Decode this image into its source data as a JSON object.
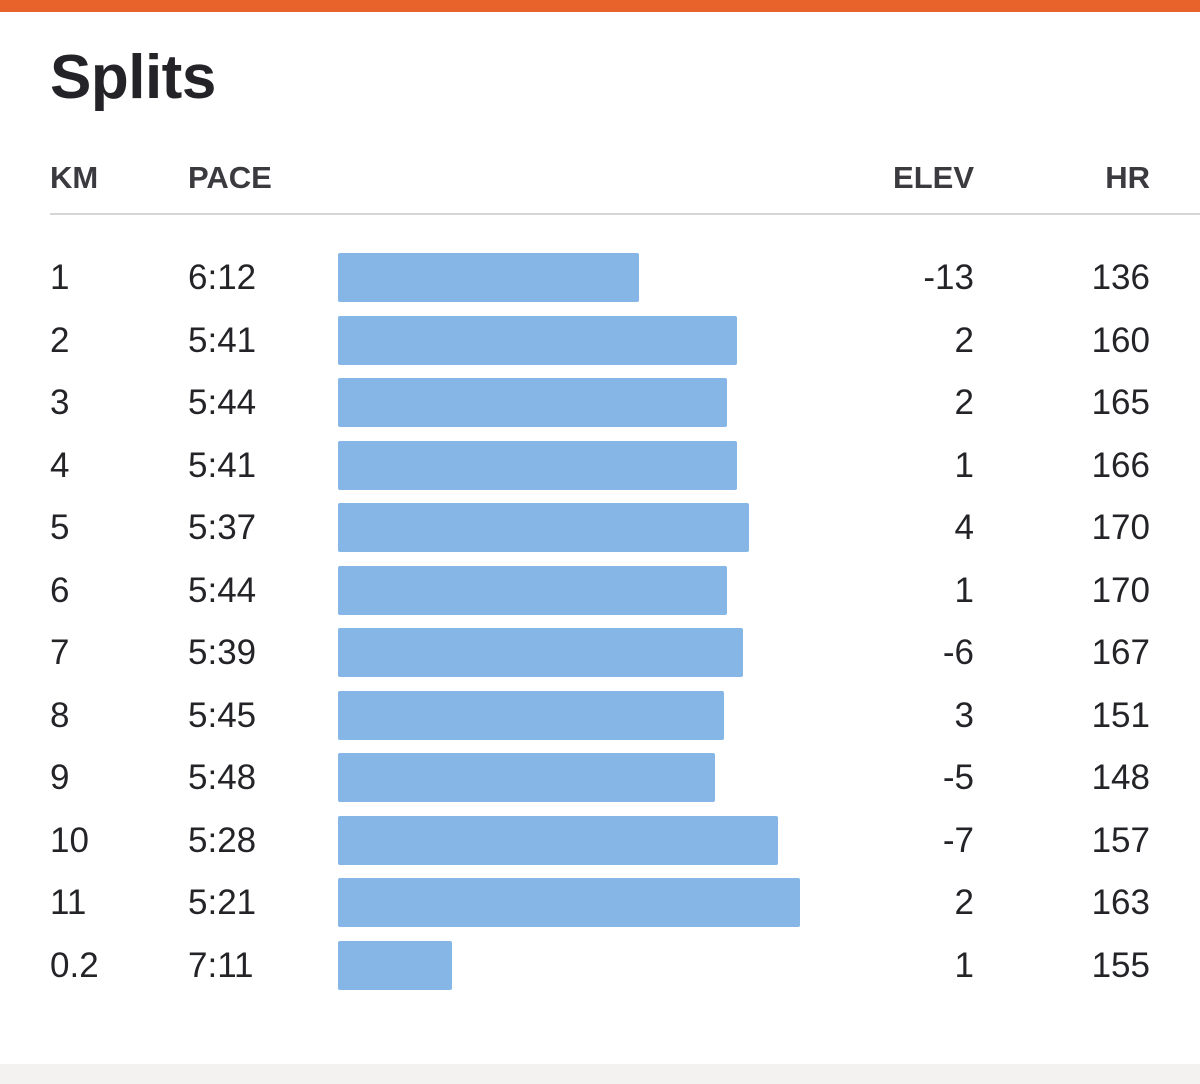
{
  "accent_color": "#e8632b",
  "bar_color": "#85b6e6",
  "title": "Splits",
  "columns": {
    "km": "KM",
    "pace": "PACE",
    "elev": "ELEV",
    "hr": "HR"
  },
  "splits": [
    {
      "km": "1",
      "pace": "6:12",
      "elev": "-13",
      "hr": "136",
      "pace_seconds": 372
    },
    {
      "km": "2",
      "pace": "5:41",
      "elev": "2",
      "hr": "160",
      "pace_seconds": 341
    },
    {
      "km": "3",
      "pace": "5:44",
      "elev": "2",
      "hr": "165",
      "pace_seconds": 344
    },
    {
      "km": "4",
      "pace": "5:41",
      "elev": "1",
      "hr": "166",
      "pace_seconds": 341
    },
    {
      "km": "5",
      "pace": "5:37",
      "elev": "4",
      "hr": "170",
      "pace_seconds": 337
    },
    {
      "km": "6",
      "pace": "5:44",
      "elev": "1",
      "hr": "170",
      "pace_seconds": 344
    },
    {
      "km": "7",
      "pace": "5:39",
      "elev": "-6",
      "hr": "167",
      "pace_seconds": 339
    },
    {
      "km": "8",
      "pace": "5:45",
      "elev": "3",
      "hr": "151",
      "pace_seconds": 345
    },
    {
      "km": "9",
      "pace": "5:48",
      "elev": "-5",
      "hr": "148",
      "pace_seconds": 348
    },
    {
      "km": "10",
      "pace": "5:28",
      "elev": "-7",
      "hr": "157",
      "pace_seconds": 328
    },
    {
      "km": "11",
      "pace": "5:21",
      "elev": "2",
      "hr": "163",
      "pace_seconds": 321
    },
    {
      "km": "0.2",
      "pace": "7:11",
      "elev": "1",
      "hr": "155",
      "pace_seconds": 431
    }
  ]
}
